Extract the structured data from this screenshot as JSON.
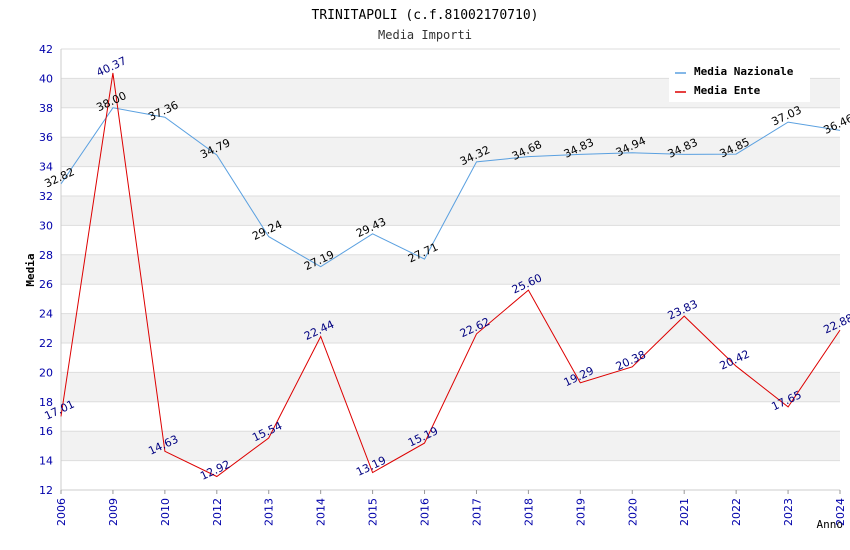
{
  "chart_data": {
    "type": "line",
    "title": "TRINITAPOLI (c.f.81002170710)",
    "subtitle": "Media Importi",
    "xlabel": "Anno",
    "ylabel": "Media",
    "ylim": [
      12,
      42
    ],
    "yticks": [
      12,
      14,
      16,
      18,
      20,
      22,
      24,
      26,
      28,
      30,
      32,
      34,
      36,
      38,
      40,
      42
    ],
    "categories": [
      "2006",
      "2009",
      "2010",
      "2012",
      "2013",
      "2014",
      "2015",
      "2016",
      "2017",
      "2018",
      "2019",
      "2020",
      "2021",
      "2022",
      "2023",
      "2024"
    ],
    "legend_position": "top-right",
    "series": [
      {
        "name": "Media Nazionale",
        "color": "#5aa0e0",
        "label_color": "#000000",
        "values": [
          32.82,
          38.0,
          37.36,
          34.79,
          29.24,
          27.19,
          29.43,
          27.71,
          34.32,
          34.68,
          34.83,
          34.94,
          34.83,
          34.85,
          37.03,
          36.46
        ],
        "labels": [
          "32.82",
          "38.00",
          "37.36",
          "34.79",
          "29.24",
          "27.19",
          "29.43",
          "27.71",
          "34.32",
          "34.68",
          "34.83",
          "34.94",
          "34.83",
          "34.85",
          "37.03",
          "36.46"
        ]
      },
      {
        "name": "Media Ente",
        "color": "#dd0000",
        "label_color": "#000080",
        "values": [
          17.01,
          40.37,
          14.63,
          12.92,
          15.54,
          22.44,
          13.19,
          15.19,
          22.62,
          25.6,
          19.29,
          20.38,
          23.83,
          20.42,
          17.65,
          22.88
        ],
        "labels": [
          "17.01",
          "40.37",
          "14.63",
          "12.92",
          "15.54",
          "22.44",
          "13.19",
          "15.19",
          "22.62",
          "25.60",
          "19.29",
          "20.38",
          "23.83",
          "20.42",
          "17.65",
          "22.88"
        ]
      }
    ]
  }
}
